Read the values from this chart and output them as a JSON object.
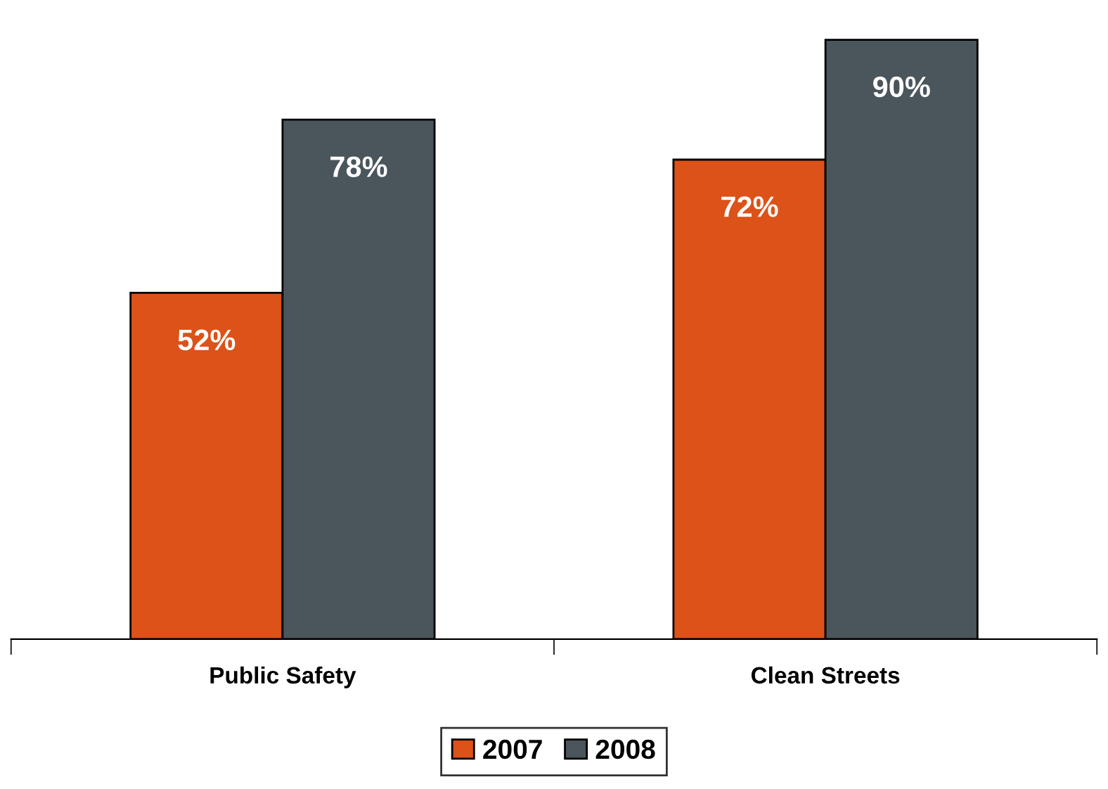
{
  "chart_data": {
    "type": "bar",
    "categories": [
      "Public Safety",
      "Clean Streets"
    ],
    "series": [
      {
        "name": "2007",
        "color": "#dc5218",
        "values": [
          52,
          72
        ],
        "value_labels": [
          "52%",
          "72%"
        ]
      },
      {
        "name": "2008",
        "color": "#4a555c",
        "values": [
          78,
          90
        ],
        "value_labels": [
          "78%",
          "90%"
        ]
      }
    ],
    "legend": "bottom",
    "grid": false
  }
}
